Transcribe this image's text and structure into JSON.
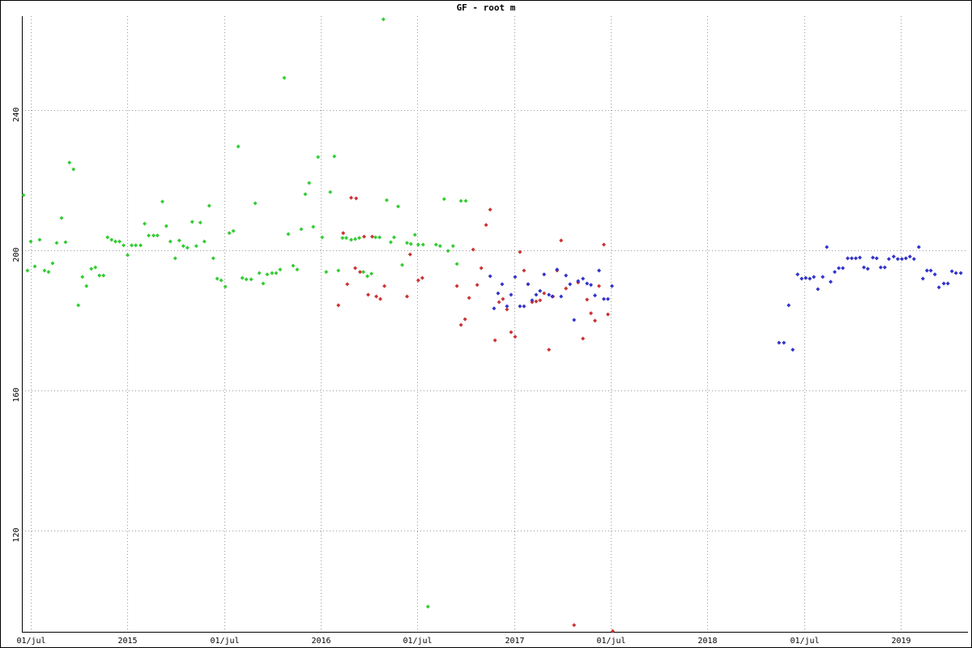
{
  "chart_data": {
    "type": "scatter",
    "title": "GF - root m",
    "xlim": [
      2014.454,
      2019.347
    ],
    "ylim": [
      91.1,
      266.8
    ],
    "xticks": [
      {
        "value": 2014.5,
        "label": "01/jul"
      },
      2015,
      {
        "value": 2015.5,
        "label": "01/jul"
      },
      2016,
      {
        "value": 2016.5,
        "label": "01/jul"
      },
      2017,
      {
        "value": 2017.5,
        "label": "01/jul"
      },
      2018,
      {
        "value": 2018.5,
        "label": "01/jul"
      },
      2019
    ],
    "yticks": [
      120,
      160,
      200,
      240
    ],
    "grid": true,
    "series": [
      {
        "color": "#33cc33",
        "x": [
          2014.462,
          2014.483,
          2014.5,
          2014.521,
          2014.546,
          2014.571,
          2014.592,
          2014.613,
          2014.634,
          2014.659,
          2014.68,
          2014.7,
          2014.721,
          2014.746,
          2014.767,
          2014.788,
          2014.813,
          2014.834,
          2014.855,
          2014.876,
          2014.897,
          2014.918,
          2014.938,
          2014.959,
          2014.98,
          2015.001,
          2015.022,
          2015.043,
          2015.068,
          2015.089,
          2015.11,
          2015.135,
          2015.155,
          2015.181,
          2015.201,
          2015.222,
          2015.247,
          2015.268,
          2015.289,
          2015.31,
          2015.335,
          2015.356,
          2015.377,
          2015.398,
          2015.423,
          2015.444,
          2015.464,
          2015.485,
          2015.506,
          2015.527,
          2015.548,
          2015.573,
          2015.594,
          2015.615,
          2015.64,
          2015.661,
          2015.682,
          2015.702,
          2015.723,
          2015.748,
          2015.769,
          2015.79,
          2015.811,
          2015.832,
          2015.857,
          2015.878,
          2015.899,
          2015.92,
          2015.94,
          2015.961,
          2015.986,
          2016.007,
          2016.028,
          2016.049,
          2016.07,
          2016.091,
          2016.112,
          2016.132,
          2016.157,
          2016.178,
          2016.199,
          2016.22,
          2016.241,
          2016.262,
          2016.283,
          2016.304,
          2016.324,
          2016.341,
          2016.362,
          2016.379,
          2016.4,
          2016.421,
          2016.446,
          2016.466,
          2016.487,
          2016.504,
          2016.529,
          2016.554,
          2016.596,
          2016.617,
          2016.638,
          2016.658,
          2016.684,
          2016.704,
          2016.725,
          2016.75
        ],
        "values": [
          215.7,
          194.2,
          202.5,
          195.4,
          203.0,
          194.2,
          193.8,
          196.3,
          202.1,
          209.2,
          202.3,
          225.0,
          223.1,
          184.3,
          192.4,
          189.8,
          194.7,
          195.1,
          192.8,
          192.8,
          203.7,
          203.0,
          202.5,
          202.5,
          201.4,
          198.6,
          201.4,
          201.4,
          201.4,
          207.6,
          204.2,
          204.2,
          204.2,
          213.9,
          206.9,
          202.5,
          197.7,
          202.8,
          201.2,
          200.7,
          208.1,
          201.2,
          207.9,
          202.5,
          212.7,
          197.7,
          191.9,
          191.4,
          189.6,
          204.9,
          205.5,
          229.6,
          192.1,
          191.7,
          191.7,
          213.4,
          193.5,
          190.5,
          193.1,
          193.5,
          193.5,
          194.5,
          249.2,
          204.6,
          195.6,
          194.5,
          206.0,
          216.0,
          219.2,
          206.7,
          226.6,
          203.7,
          193.8,
          216.6,
          226.8,
          194.2,
          203.5,
          203.5,
          203.0,
          203.2,
          203.5,
          193.8,
          192.6,
          193.3,
          203.7,
          203.7,
          265.9,
          214.3,
          202.3,
          203.7,
          212.5,
          195.8,
          202.1,
          201.8,
          204.4,
          201.6,
          201.6,
          98.3,
          201.6,
          201.2,
          214.6,
          199.8,
          201.2,
          196.1,
          214.1,
          214.1
        ]
      },
      {
        "color": "#cc3333",
        "x": [
          2016.091,
          2016.116,
          2016.137,
          2016.157,
          2016.178,
          2016.183,
          2016.203,
          2016.224,
          2016.245,
          2016.266,
          2016.287,
          2016.308,
          2016.329,
          2016.446,
          2016.462,
          2016.504,
          2016.525,
          2016.704,
          2016.725,
          2016.746,
          2016.767,
          2016.788,
          2016.809,
          2016.83,
          2016.855,
          2016.876,
          2016.901,
          2016.922,
          2016.942,
          2016.963,
          2016.984,
          2017.005,
          2017.03,
          2017.051,
          2017.072,
          2017.093,
          2017.114,
          2017.134,
          2017.155,
          2017.18,
          2017.201,
          2017.222,
          2017.243,
          2017.268,
          2017.31,
          2017.331,
          2017.356,
          2017.377,
          2017.397,
          2017.418,
          2017.439,
          2017.464,
          2017.485,
          2017.51
        ],
        "values": [
          184.3,
          204.9,
          190.3,
          215.0,
          194.9,
          214.8,
          193.8,
          203.9,
          187.3,
          203.9,
          186.8,
          186.1,
          189.8,
          186.8,
          198.8,
          191.4,
          192.1,
          189.8,
          178.7,
          180.3,
          186.4,
          200.2,
          190.1,
          194.9,
          207.2,
          211.6,
          174.3,
          185.2,
          186.1,
          183.1,
          176.6,
          175.3,
          199.5,
          194.2,
          190.3,
          185.2,
          185.4,
          185.7,
          187.7,
          171.6,
          186.8,
          194.2,
          202.8,
          189.1,
          93.0,
          190.8,
          174.8,
          185.9,
          182.0,
          179.9,
          189.8,
          201.6,
          181.7,
          91.3
        ]
      },
      {
        "color": "#3333cc",
        "x": [
          2016.876,
          2016.896,
          2016.917,
          2016.938,
          2016.963,
          2016.984,
          2017.005,
          2017.03,
          2017.051,
          2017.072,
          2017.093,
          2017.114,
          2017.134,
          2017.155,
          2017.18,
          2017.197,
          2017.222,
          2017.243,
          2017.268,
          2017.289,
          2017.31,
          2017.331,
          2017.356,
          2017.377,
          2017.397,
          2017.418,
          2017.439,
          2017.464,
          2017.485,
          2017.506,
          2018.37,
          2018.395,
          2018.42,
          2018.441,
          2018.466,
          2018.487,
          2018.508,
          2018.529,
          2018.55,
          2018.571,
          2018.596,
          2018.617,
          2018.637,
          2018.658,
          2018.679,
          2018.7,
          2018.725,
          2018.746,
          2018.767,
          2018.788,
          2018.809,
          2018.829,
          2018.855,
          2018.875,
          2018.896,
          2018.917,
          2018.938,
          2018.963,
          2018.984,
          2019.005,
          2019.026,
          2019.047,
          2019.068,
          2019.093,
          2019.114,
          2019.135,
          2019.155,
          2019.176,
          2019.197,
          2019.222,
          2019.243,
          2019.264,
          2019.285,
          2019.31
        ],
        "values": [
          192.6,
          183.4,
          187.7,
          190.3,
          184.0,
          187.3,
          192.4,
          184.0,
          184.0,
          190.3,
          185.7,
          187.3,
          188.4,
          193.1,
          187.3,
          186.8,
          194.5,
          186.8,
          192.8,
          190.3,
          180.1,
          191.2,
          191.9,
          190.5,
          190.1,
          187.1,
          194.2,
          186.1,
          186.1,
          189.8,
          173.6,
          173.6,
          184.3,
          171.6,
          193.1,
          191.9,
          192.1,
          191.9,
          192.4,
          188.9,
          192.4,
          200.9,
          191.0,
          193.8,
          194.9,
          194.9,
          197.7,
          197.7,
          197.7,
          197.9,
          195.1,
          194.7,
          197.9,
          197.7,
          195.1,
          195.1,
          197.5,
          198.2,
          197.5,
          197.5,
          197.7,
          198.2,
          197.5,
          200.9,
          191.9,
          194.2,
          194.2,
          193.1,
          189.4,
          190.5,
          190.5,
          194.0,
          193.5,
          193.5
        ]
      }
    ]
  }
}
